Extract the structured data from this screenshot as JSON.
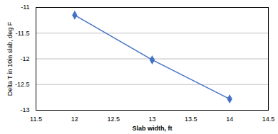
{
  "chart_data": {
    "type": "line",
    "x": [
      12,
      13,
      14
    ],
    "values": [
      -11.15,
      -12.02,
      -12.78
    ],
    "color": "#4472C4",
    "marker": "diamond",
    "xlim": [
      11.5,
      14.5
    ],
    "ylim": [
      -13,
      -11
    ],
    "xticks": [
      11.5,
      12,
      12.5,
      13,
      13.5,
      14,
      14.5
    ],
    "yticks": [
      -13,
      -12.5,
      -12,
      -11.5,
      -11
    ],
    "xlabel": "Slab width, ft",
    "ylabel": "Delta T in 10in slab, deg F",
    "grid": "y"
  }
}
